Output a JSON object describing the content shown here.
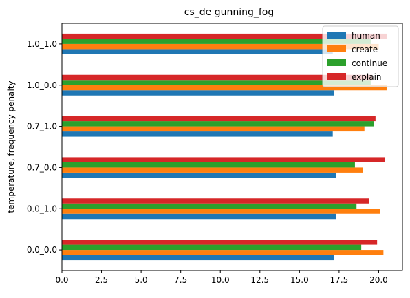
{
  "chart_data": {
    "type": "bar",
    "orientation": "horizontal",
    "title": "cs_de gunning_fog",
    "xlabel": "",
    "ylabel": "temperature, frequency penalty",
    "xlim": [
      0,
      21.5
    ],
    "x_ticks": [
      "0.0",
      "2.5",
      "5.0",
      "7.5",
      "10.0",
      "12.5",
      "15.0",
      "17.5",
      "20.0"
    ],
    "categories": [
      "0.0_0.0",
      "0.0_1.0",
      "0.7_0.0",
      "0.7_1.0",
      "1.0_0.0",
      "1.0_1.0"
    ],
    "series": [
      {
        "name": "human",
        "color": "#1f77b4",
        "values": [
          17.2,
          17.3,
          17.3,
          17.1,
          17.2,
          17.1
        ]
      },
      {
        "name": "create",
        "color": "#ff7f0e",
        "values": [
          20.3,
          20.1,
          19.0,
          19.1,
          20.5,
          20.0
        ]
      },
      {
        "name": "continue",
        "color": "#2ca02c",
        "values": [
          18.9,
          18.6,
          18.5,
          19.7,
          19.5,
          19.5
        ]
      },
      {
        "name": "explain",
        "color": "#d62728",
        "values": [
          19.9,
          19.4,
          20.4,
          19.8,
          19.6,
          20.5
        ]
      }
    ],
    "grid": false,
    "legend_position": "top-right"
  }
}
